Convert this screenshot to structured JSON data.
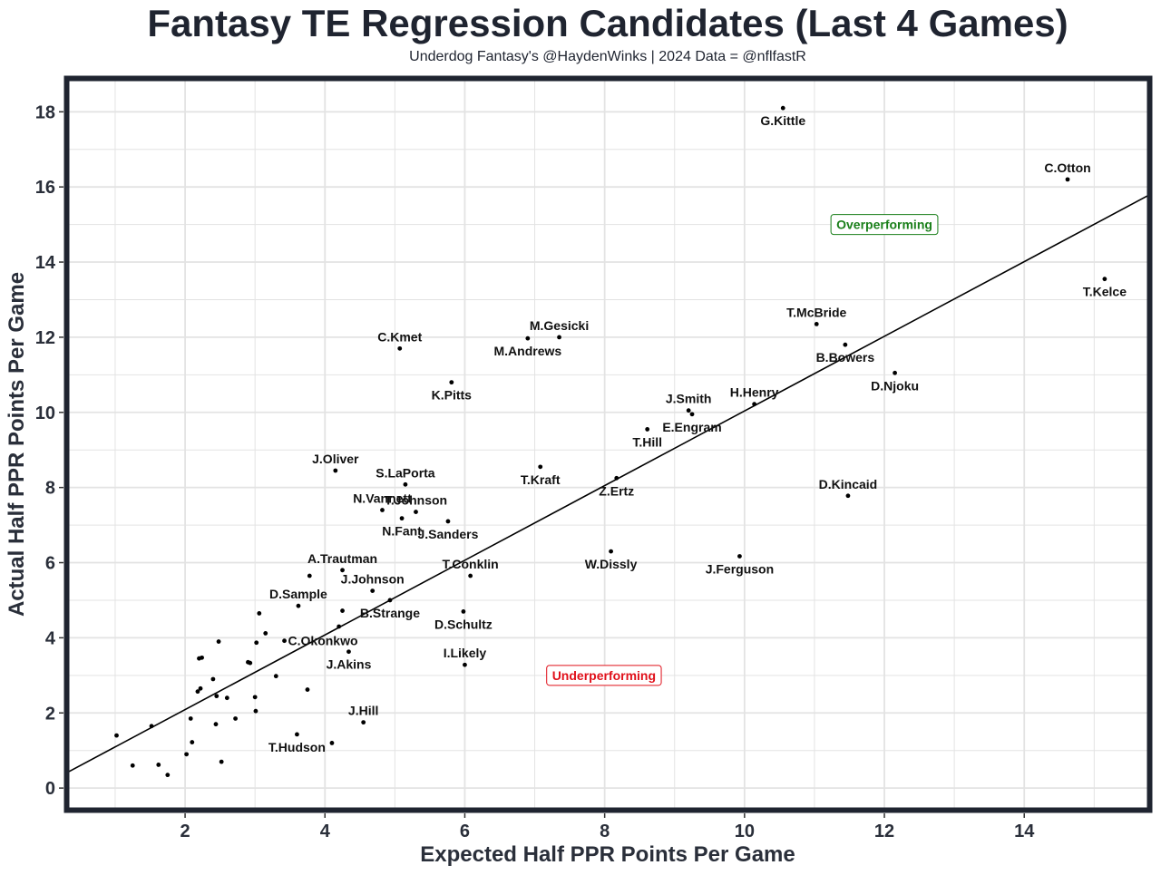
{
  "header": {
    "title": "Fantasy TE Regression Candidates (Last 4 Games)",
    "subtitle": "Underdog Fantasy's @HaydenWinks | 2024 Data = @nflfastR"
  },
  "chart_data": {
    "type": "scatter",
    "title": "Fantasy TE Regression Candidates (Last 4 Games)",
    "subtitle": "Underdog Fantasy's @HaydenWinks | 2024 Data = @nflfastR",
    "xlabel": "Expected Half PPR Points Per Game",
    "ylabel": "Actual Half PPR Points Per Game",
    "xlim": [
      0.3,
      15.8
    ],
    "ylim": [
      -0.6,
      18.9
    ],
    "xticks": [
      2,
      4,
      6,
      8,
      10,
      12,
      14
    ],
    "yticks": [
      0,
      2,
      4,
      6,
      8,
      10,
      12,
      14,
      16,
      18
    ],
    "grid": true,
    "reference_line": {
      "description": "y = x",
      "x": [
        0.3,
        15.8
      ],
      "y": [
        0.4,
        15.8
      ]
    },
    "annotations": [
      {
        "text": "Overperforming",
        "x": 12.0,
        "y": 15.0,
        "color": "#1a7f1a"
      },
      {
        "text": "Underperforming",
        "x": 7.99,
        "y": 3.0,
        "color": "#e0101a"
      }
    ],
    "labeled_points": [
      {
        "name": "G.Kittle",
        "x": 10.55,
        "y": 18.1,
        "label_pos": "below"
      },
      {
        "name": "C.Otton",
        "x": 14.62,
        "y": 16.2,
        "label_pos": "above"
      },
      {
        "name": "T.Kelce",
        "x": 15.15,
        "y": 13.55,
        "label_pos": "below"
      },
      {
        "name": "T.McBride",
        "x": 11.03,
        "y": 12.35,
        "label_pos": "above"
      },
      {
        "name": "B.Bowers",
        "x": 11.44,
        "y": 11.8,
        "label_pos": "below"
      },
      {
        "name": "D.Njoku",
        "x": 12.15,
        "y": 11.05,
        "label_pos": "below"
      },
      {
        "name": "H.Henry",
        "x": 10.14,
        "y": 10.22,
        "label_pos": "above"
      },
      {
        "name": "J.Smith",
        "x": 9.2,
        "y": 10.05,
        "label_pos": "above"
      },
      {
        "name": "E.Engram",
        "x": 9.25,
        "y": 9.95,
        "label_pos": "below"
      },
      {
        "name": "T.Hill",
        "x": 8.61,
        "y": 9.55,
        "label_pos": "below"
      },
      {
        "name": "D.Kincaid",
        "x": 11.48,
        "y": 7.78,
        "label_pos": "above"
      },
      {
        "name": "M.Gesicki",
        "x": 7.35,
        "y": 12.0,
        "label_pos": "above"
      },
      {
        "name": "M.Andrews",
        "x": 6.9,
        "y": 11.97,
        "label_pos": "below"
      },
      {
        "name": "C.Kmet",
        "x": 5.07,
        "y": 11.7,
        "label_pos": "above"
      },
      {
        "name": "K.Pitts",
        "x": 5.81,
        "y": 10.8,
        "label_pos": "below"
      },
      {
        "name": "J.Oliver",
        "x": 4.15,
        "y": 8.45,
        "label_pos": "above"
      },
      {
        "name": "S.LaPorta",
        "x": 5.15,
        "y": 8.08,
        "label_pos": "above"
      },
      {
        "name": "T.Kraft",
        "x": 7.08,
        "y": 8.55,
        "label_pos": "below"
      },
      {
        "name": "Z.Ertz",
        "x": 8.17,
        "y": 8.25,
        "label_pos": "below"
      },
      {
        "name": "N.Vannett",
        "x": 4.82,
        "y": 7.4,
        "label_pos": "above"
      },
      {
        "name": "T.Johnson",
        "x": 5.3,
        "y": 7.35,
        "label_pos": "above"
      },
      {
        "name": "N.Fant",
        "x": 5.1,
        "y": 7.18,
        "label_pos": "below"
      },
      {
        "name": "J.Sanders",
        "x": 5.76,
        "y": 7.1,
        "label_pos": "below"
      },
      {
        "name": "W.Dissly",
        "x": 8.09,
        "y": 6.3,
        "label_pos": "below"
      },
      {
        "name": "J.Ferguson",
        "x": 9.93,
        "y": 6.17,
        "label_pos": "below"
      },
      {
        "name": "A.Trautman",
        "x": 4.25,
        "y": 5.8,
        "label_pos": "above"
      },
      {
        "name": "T.Conklin",
        "x": 6.08,
        "y": 5.65,
        "label_pos": "above"
      },
      {
        "name": "J.Johnson",
        "x": 4.68,
        "y": 5.25,
        "label_pos": "above"
      },
      {
        "name": "B.Strange",
        "x": 4.93,
        "y": 5.0,
        "label_pos": "below"
      },
      {
        "name": "D.Sample",
        "x": 3.62,
        "y": 4.85,
        "label_pos": "above"
      },
      {
        "name": "D.Schultz",
        "x": 5.98,
        "y": 4.7,
        "label_pos": "below"
      },
      {
        "name": "C.Okonkwo",
        "x": 3.42,
        "y": 3.92,
        "label_pos": "right"
      },
      {
        "name": "J.Akins",
        "x": 4.34,
        "y": 3.63,
        "label_pos": "below"
      },
      {
        "name": "I.Likely",
        "x": 6.0,
        "y": 3.28,
        "label_pos": "above"
      },
      {
        "name": "J.Hill",
        "x": 4.55,
        "y": 1.75,
        "label_pos": "above"
      },
      {
        "name": "T.Hudson",
        "x": 3.6,
        "y": 1.43,
        "label_pos": "below"
      }
    ],
    "unlabeled_points": [
      {
        "x": 1.02,
        "y": 1.4
      },
      {
        "x": 1.25,
        "y": 0.6
      },
      {
        "x": 1.52,
        "y": 1.65
      },
      {
        "x": 1.62,
        "y": 0.62
      },
      {
        "x": 1.75,
        "y": 0.35
      },
      {
        "x": 2.02,
        "y": 0.9
      },
      {
        "x": 2.08,
        "y": 1.85
      },
      {
        "x": 2.1,
        "y": 1.22
      },
      {
        "x": 2.18,
        "y": 2.57
      },
      {
        "x": 2.2,
        "y": 3.45
      },
      {
        "x": 2.22,
        "y": 2.65
      },
      {
        "x": 2.24,
        "y": 3.47
      },
      {
        "x": 2.4,
        "y": 2.9
      },
      {
        "x": 2.44,
        "y": 1.7
      },
      {
        "x": 2.45,
        "y": 2.45
      },
      {
        "x": 2.48,
        "y": 3.9
      },
      {
        "x": 2.52,
        "y": 0.7
      },
      {
        "x": 2.6,
        "y": 2.4
      },
      {
        "x": 2.72,
        "y": 1.85
      },
      {
        "x": 2.9,
        "y": 3.35
      },
      {
        "x": 2.93,
        "y": 3.33
      },
      {
        "x": 3.0,
        "y": 2.42
      },
      {
        "x": 3.01,
        "y": 2.05
      },
      {
        "x": 3.02,
        "y": 3.87
      },
      {
        "x": 3.06,
        "y": 4.65
      },
      {
        "x": 3.15,
        "y": 4.12
      },
      {
        "x": 3.3,
        "y": 2.98
      },
      {
        "x": 3.75,
        "y": 2.62
      },
      {
        "x": 3.78,
        "y": 5.65
      },
      {
        "x": 4.1,
        "y": 1.2
      },
      {
        "x": 4.2,
        "y": 4.3
      },
      {
        "x": 4.25,
        "y": 4.72
      }
    ]
  }
}
